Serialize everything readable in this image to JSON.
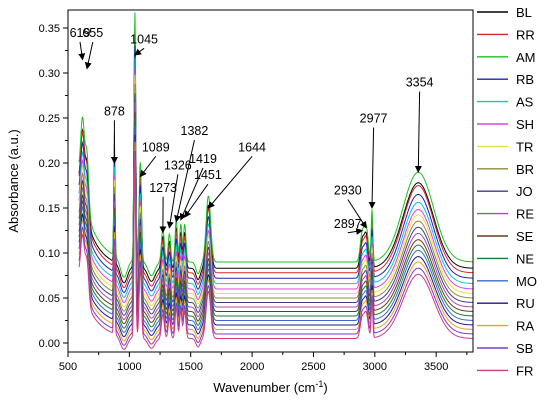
{
  "chart_data": {
    "type": "line",
    "xlabel": "Wavenumber (cm",
    "xlabel_sup": "-1",
    "xlabel_close": ")",
    "ylabel": "Absorbance (a.u.)",
    "xlim": [
      500,
      3800
    ],
    "ylim": [
      -0.01,
      0.37
    ],
    "x_ticks": [
      500,
      1000,
      1500,
      2000,
      2500,
      3000,
      3500
    ],
    "y_ticks": [
      0.0,
      0.05,
      0.1,
      0.15,
      0.2,
      0.25,
      0.3,
      0.35
    ],
    "y_tick_labels": [
      "0.00",
      "0.05",
      "0.10",
      "0.15",
      "0.20",
      "0.25",
      "0.30",
      "0.35"
    ],
    "legend_position": "right",
    "series": [
      {
        "name": "BL",
        "color": "#000000",
        "baseline": 0.083,
        "scale": 1.0
      },
      {
        "name": "RR",
        "color": "#d62728",
        "baseline": 0.078,
        "scale": 1.02
      },
      {
        "name": "AM",
        "color": "#1fbf1f",
        "baseline": 0.09,
        "scale": 1.05
      },
      {
        "name": "RB",
        "color": "#1f1fbf",
        "baseline": 0.072,
        "scale": 0.98
      },
      {
        "name": "AS",
        "color": "#00c8d8",
        "baseline": 0.066,
        "scale": 0.95
      },
      {
        "name": "SH",
        "color": "#e040e0",
        "baseline": 0.06,
        "scale": 0.93
      },
      {
        "name": "TR",
        "color": "#e8e040",
        "baseline": 0.055,
        "scale": 0.92
      },
      {
        "name": "BR",
        "color": "#8c8c3c",
        "baseline": 0.05,
        "scale": 0.9
      },
      {
        "name": "JO",
        "color": "#3c3c8c",
        "baseline": 0.045,
        "scale": 0.88
      },
      {
        "name": "RE",
        "color": "#a050b0",
        "baseline": 0.04,
        "scale": 0.86
      },
      {
        "name": "SE",
        "color": "#6b3a1a",
        "baseline": 0.035,
        "scale": 0.84
      },
      {
        "name": "NE",
        "color": "#1a7a3a",
        "baseline": 0.03,
        "scale": 0.83
      },
      {
        "name": "MO",
        "color": "#3a6ad0",
        "baseline": 0.025,
        "scale": 0.82
      },
      {
        "name": "RU",
        "color": "#1a1a8c",
        "baseline": 0.02,
        "scale": 0.8
      },
      {
        "name": "RA",
        "color": "#f0a020",
        "baseline": 0.015,
        "scale": 0.79
      },
      {
        "name": "SB",
        "color": "#7a3ad0",
        "baseline": 0.01,
        "scale": 0.77
      },
      {
        "name": "FR",
        "color": "#d03a8c",
        "baseline": 0.005,
        "scale": 0.75
      }
    ],
    "annotations": [
      {
        "label": "619",
        "x": 619,
        "y": 0.315,
        "tx": 598,
        "ty": 0.34
      },
      {
        "label": "655",
        "x": 655,
        "y": 0.305,
        "tx": 702,
        "ty": 0.34
      },
      {
        "label": "1045",
        "x": 1045,
        "y": 0.32,
        "tx": 1120,
        "ty": 0.333
      },
      {
        "label": "878",
        "x": 878,
        "y": 0.2,
        "tx": 878,
        "ty": 0.253
      },
      {
        "label": "1089",
        "x": 1089,
        "y": 0.185,
        "tx": 1215,
        "ty": 0.213
      },
      {
        "label": "1273",
        "x": 1273,
        "y": 0.123,
        "tx": 1275,
        "ty": 0.168
      },
      {
        "label": "1326",
        "x": 1326,
        "y": 0.128,
        "tx": 1395,
        "ty": 0.193
      },
      {
        "label": "1382",
        "x": 1382,
        "y": 0.135,
        "tx": 1530,
        "ty": 0.231
      },
      {
        "label": "1419",
        "x": 1419,
        "y": 0.137,
        "tx": 1600,
        "ty": 0.2
      },
      {
        "label": "1451",
        "x": 1451,
        "y": 0.14,
        "tx": 1640,
        "ty": 0.182
      },
      {
        "label": "1644",
        "x": 1644,
        "y": 0.15,
        "tx": 2000,
        "ty": 0.213
      },
      {
        "label": "2897",
        "x": 2897,
        "y": 0.125,
        "tx": 2780,
        "ty": 0.128
      },
      {
        "label": "2930",
        "x": 2930,
        "y": 0.128,
        "tx": 2780,
        "ty": 0.165
      },
      {
        "label": "2977",
        "x": 2977,
        "y": 0.15,
        "tx": 2990,
        "ty": 0.245
      },
      {
        "label": "3354",
        "x": 3354,
        "y": 0.19,
        "tx": 3365,
        "ty": 0.285
      }
    ]
  }
}
